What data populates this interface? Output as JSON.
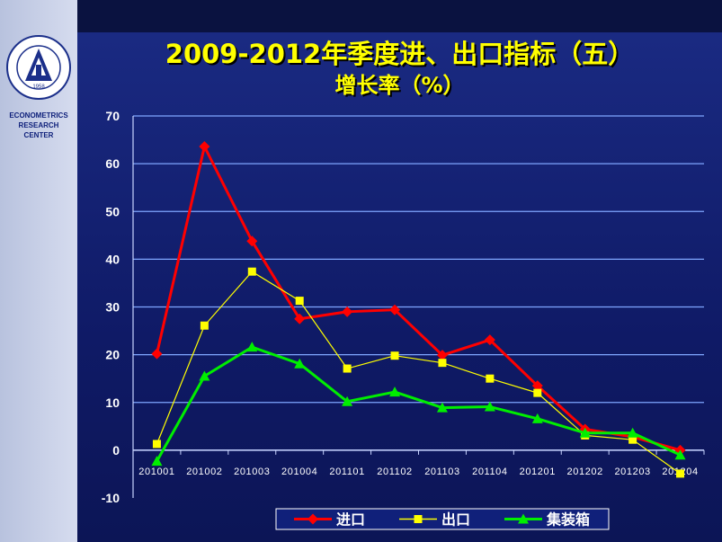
{
  "sidebar": {
    "center_lines": [
      "ECONOMETRICS",
      "RESEARCH",
      "CENTER"
    ],
    "logo": {
      "icon": "academy-seal-logo",
      "year": "1958",
      "ring_text": "SHANGHAI ACADEMY OF SOCIAL SCIENCES"
    }
  },
  "title": "2009-2012年季度进、出口指标（五）",
  "subtitle": "增长率（%）",
  "colors": {
    "background": "#0e1a66",
    "title": "#ffff00",
    "gridline": "#7fa6ff",
    "axis_text": "#ffffff",
    "import": "#ff0000",
    "export": "#ffff00",
    "container": "#00ee00"
  },
  "chart_data": {
    "type": "line",
    "title": "2009-2012年季度进、出口指标（五）",
    "subtitle": "增长率（%）",
    "xlabel": "",
    "ylabel": "",
    "categories": [
      "201001",
      "201002",
      "201003",
      "201004",
      "201101",
      "201102",
      "201103",
      "201104",
      "201201",
      "201202",
      "201203",
      "201204"
    ],
    "ylim": [
      -10,
      70
    ],
    "yticks": [
      -10,
      0,
      10,
      20,
      30,
      40,
      50,
      60,
      70
    ],
    "grid": true,
    "legend_position": "bottom",
    "series": [
      {
        "name": "进口",
        "color": "#ff0000",
        "marker": "diamond",
        "values": [
          20.2,
          63.6,
          43.8,
          27.5,
          29.0,
          29.4,
          19.9,
          23.1,
          13.5,
          4.4,
          2.8,
          0.0
        ]
      },
      {
        "name": "出口",
        "color": "#ffff00",
        "marker": "square",
        "values": [
          1.3,
          26.1,
          37.4,
          31.3,
          17.1,
          19.8,
          18.3,
          15.0,
          12.0,
          3.1,
          2.2,
          -4.9
        ]
      },
      {
        "name": "集装箱",
        "color": "#00ee00",
        "marker": "triangle",
        "values": [
          -2.3,
          15.5,
          21.6,
          18.1,
          10.2,
          12.2,
          8.9,
          9.1,
          6.6,
          3.6,
          3.6,
          -1.0
        ]
      }
    ]
  }
}
